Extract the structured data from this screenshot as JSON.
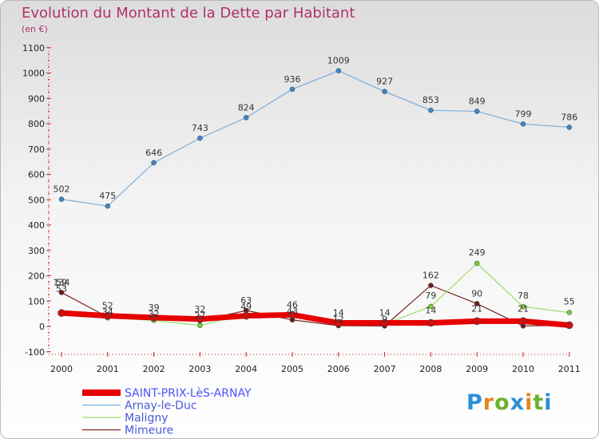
{
  "header": {
    "title": "Evolution du Montant de la Dette par Habitant",
    "unit": "(en €)"
  },
  "brand": {
    "text": "Proxiti",
    "colors": [
      "#2a8fd8",
      "#e2871c",
      "#6bb22e",
      "#2a8fd8",
      "#e2871c",
      "#6bb22e",
      "#2a8fd8"
    ]
  },
  "chart_data": {
    "type": "line",
    "title": "Evolution du Montant de la Dette par Habitant",
    "ylabel": "(en €)",
    "xlabel": "",
    "x": [
      "2000",
      "2001",
      "2002",
      "2003",
      "2004",
      "2005",
      "2006",
      "2007",
      "2008",
      "2009",
      "2010",
      "2011"
    ],
    "ylim": [
      -100,
      1100
    ],
    "yticks": [
      -100,
      0,
      100,
      200,
      300,
      400,
      500,
      600,
      700,
      800,
      900,
      1000,
      1100
    ],
    "grid": false,
    "legend_position": "bottom-left",
    "series": [
      {
        "name": "SAINT-PRIX-LèS-ARNAY",
        "color": "#e60000",
        "marker_color": "#d01010",
        "values": [
          53,
          42,
          35,
          29,
          42,
          46,
          14,
          14,
          14,
          21,
          21,
          5
        ]
      },
      {
        "name": "Arnay-le-Duc",
        "color": "#7aaedc",
        "marker_color": "#3f86c6",
        "values": [
          502,
          475,
          646,
          743,
          824,
          936,
          1009,
          927,
          853,
          849,
          799,
          786
        ]
      },
      {
        "name": "Maligny",
        "color": "#9bdd6a",
        "marker_color": "#78cc3c",
        "values": [
          53,
          34,
          24,
          4,
          49,
          43,
          10,
          9,
          79,
          249,
          78,
          55
        ]
      },
      {
        "name": "Mimeure",
        "color": "#7a2424",
        "marker_color": "#6a1c1c",
        "values": [
          134,
          37,
          32,
          22,
          63,
          26,
          3,
          2,
          162,
          90,
          2,
          5
        ]
      }
    ],
    "data_labels": {
      "Arnay-le-Duc": [
        "502",
        "475",
        "646",
        "743",
        "824",
        "936",
        "1009",
        "927",
        "853",
        "849",
        "799",
        "786"
      ],
      "Maligny": [
        "",
        "",
        "",
        "",
        "",
        "",
        "",
        "",
        "79",
        "249",
        "78",
        "55"
      ],
      "Mimeure": [
        "134",
        "",
        "",
        "",
        "",
        "",
        "",
        "",
        "162",
        "90",
        "",
        ""
      ],
      "SAINT-PRIX-LèS-ARNAY": [
        "",
        "",
        "",
        "",
        "",
        "",
        "",
        "",
        "14",
        "21",
        "21",
        ""
      ],
      "cluster_top": [
        "59",
        "52",
        "39",
        "32",
        "63",
        "46",
        "14",
        "14",
        "",
        "",
        "",
        ""
      ],
      "cluster_bottom": [
        "53",
        "34",
        "32",
        "27",
        "49",
        "43",
        "12",
        "9",
        "",
        "",
        "",
        ""
      ]
    }
  }
}
